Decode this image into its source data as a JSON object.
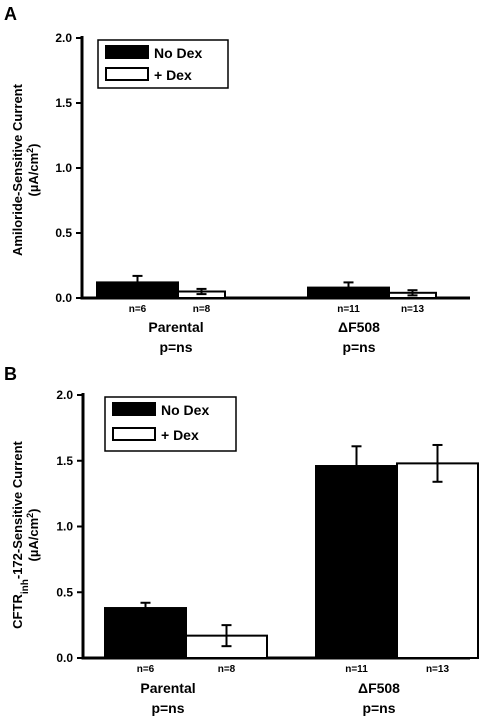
{
  "legend": [
    {
      "label": "No Dex",
      "color": "#000000"
    },
    {
      "label": "+ Dex",
      "color": "#ffffff"
    }
  ],
  "chart_data": [
    {
      "type": "bar",
      "panel": "A",
      "ylabel_line1": "Amiloride-Sensitive Current",
      "ylabel_line2_prefix": "(µA/cm",
      "ylabel_line2_sup": "2",
      "ylabel_line2_suffix": ")",
      "ylabel_subscript": "",
      "ylabel_rest": "",
      "ylim": [
        0,
        2.0
      ],
      "yticks": [
        "0.0",
        "0.5",
        "1.0",
        "1.5",
        "2.0"
      ],
      "categories": [
        "Parental",
        "ΔF508"
      ],
      "pvalues": [
        "p=ns",
        "p=ns"
      ],
      "legend_position": "top-left",
      "series": [
        {
          "name": "No Dex",
          "values": [
            0.12,
            0.08
          ],
          "errors": [
            0.05,
            0.04
          ],
          "n": [
            "n=6",
            "n=11"
          ]
        },
        {
          "name": "+ Dex",
          "values": [
            0.05,
            0.04
          ],
          "errors": [
            0.02,
            0.02
          ],
          "n": [
            "n=8",
            "n=13"
          ]
        }
      ]
    },
    {
      "type": "bar",
      "panel": "B",
      "ylabel_line1_prefix": "CFTR",
      "ylabel_line1_sub": "inh",
      "ylabel_line1_suffix": "-172-Sensitive Current",
      "ylabel_line2_prefix": "(µA/cm",
      "ylabel_line2_sup": "2",
      "ylabel_line2_suffix": ")",
      "ylim": [
        0,
        2.0
      ],
      "yticks": [
        "0.0",
        "0.5",
        "1.0",
        "1.5",
        "2.0"
      ],
      "categories": [
        "Parental",
        "ΔF508"
      ],
      "pvalues": [
        "p=ns",
        "p=ns"
      ],
      "legend_position": "top-left",
      "series": [
        {
          "name": "No Dex",
          "values": [
            0.38,
            1.46
          ],
          "errors": [
            0.04,
            0.15
          ],
          "n": [
            "n=6",
            "n=11"
          ]
        },
        {
          "name": "+ Dex",
          "values": [
            0.17,
            1.48
          ],
          "errors": [
            0.08,
            0.14
          ],
          "n": [
            "n=8",
            "n=13"
          ]
        }
      ]
    }
  ]
}
